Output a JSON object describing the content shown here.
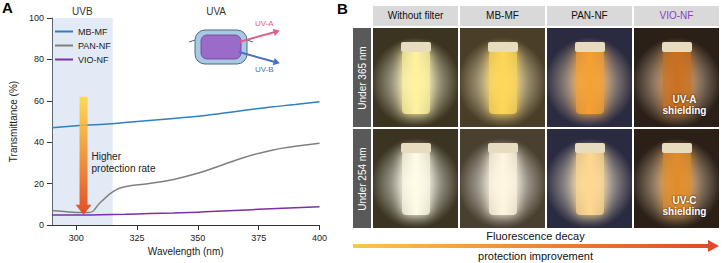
{
  "chart_data": {
    "type": "line",
    "panel_label": "A",
    "x_label": "Wavelength (nm)",
    "y_label": "Transmittance (%)",
    "xlim": [
      290,
      400
    ],
    "ylim": [
      0,
      100
    ],
    "xticks": [
      300,
      325,
      350,
      375,
      400
    ],
    "yticks": [
      0,
      20,
      40,
      60,
      80,
      100
    ],
    "grid": false,
    "legend": "upper left",
    "marker": "none",
    "bands": [
      {
        "label": "UVB",
        "from": 290,
        "to": 315
      },
      {
        "label": "UVA",
        "from": 315,
        "to": 400
      }
    ],
    "annotations": [
      {
        "text": "Higher protection rate",
        "x": 303,
        "from": 62,
        "to": 5
      }
    ],
    "inset_labels": [
      "UV-A",
      "UV-B"
    ],
    "series": [
      {
        "name": "MB-MF",
        "color": "#2f7fc1",
        "x": [
          290,
          300,
          310,
          320,
          330,
          340,
          350,
          360,
          370,
          380,
          390,
          400
        ],
        "values": [
          47,
          48,
          48.5,
          49.5,
          50.5,
          51.5,
          52.5,
          54,
          55.5,
          57,
          58.2,
          59.5
        ]
      },
      {
        "name": "PAN-NF",
        "color": "#7f7f7f",
        "x": [
          290,
          295,
          300,
          305,
          310,
          315,
          320,
          330,
          340,
          350,
          360,
          370,
          380,
          390,
          400
        ],
        "values": [
          7,
          6.5,
          6,
          6,
          11,
          16,
          18.5,
          20,
          22,
          25,
          29,
          33,
          36,
          38,
          39.5
        ]
      },
      {
        "name": "VIO-NF",
        "color": "#7b2fa8",
        "x": [
          290,
          300,
          310,
          320,
          330,
          340,
          350,
          360,
          370,
          380,
          390,
          400
        ],
        "values": [
          4.8,
          4.8,
          5,
          5.2,
          5.5,
          5.8,
          6.2,
          6.8,
          7.3,
          7.8,
          8.3,
          8.8
        ]
      }
    ]
  },
  "panel_b": {
    "label": "B",
    "columns": [
      "Without filter",
      "MB-MF",
      "PAN-NF",
      "VIO-NF"
    ],
    "rows": [
      "Under 365 nm",
      "Under 254 nm"
    ],
    "overlays": [
      {
        "row": 0,
        "col": 3,
        "text": "UV-A shielding"
      },
      {
        "row": 1,
        "col": 3,
        "text": "UV-C shielding"
      }
    ],
    "caption_top": "Fluorescence decay",
    "caption_bottom": "protection improvement"
  }
}
